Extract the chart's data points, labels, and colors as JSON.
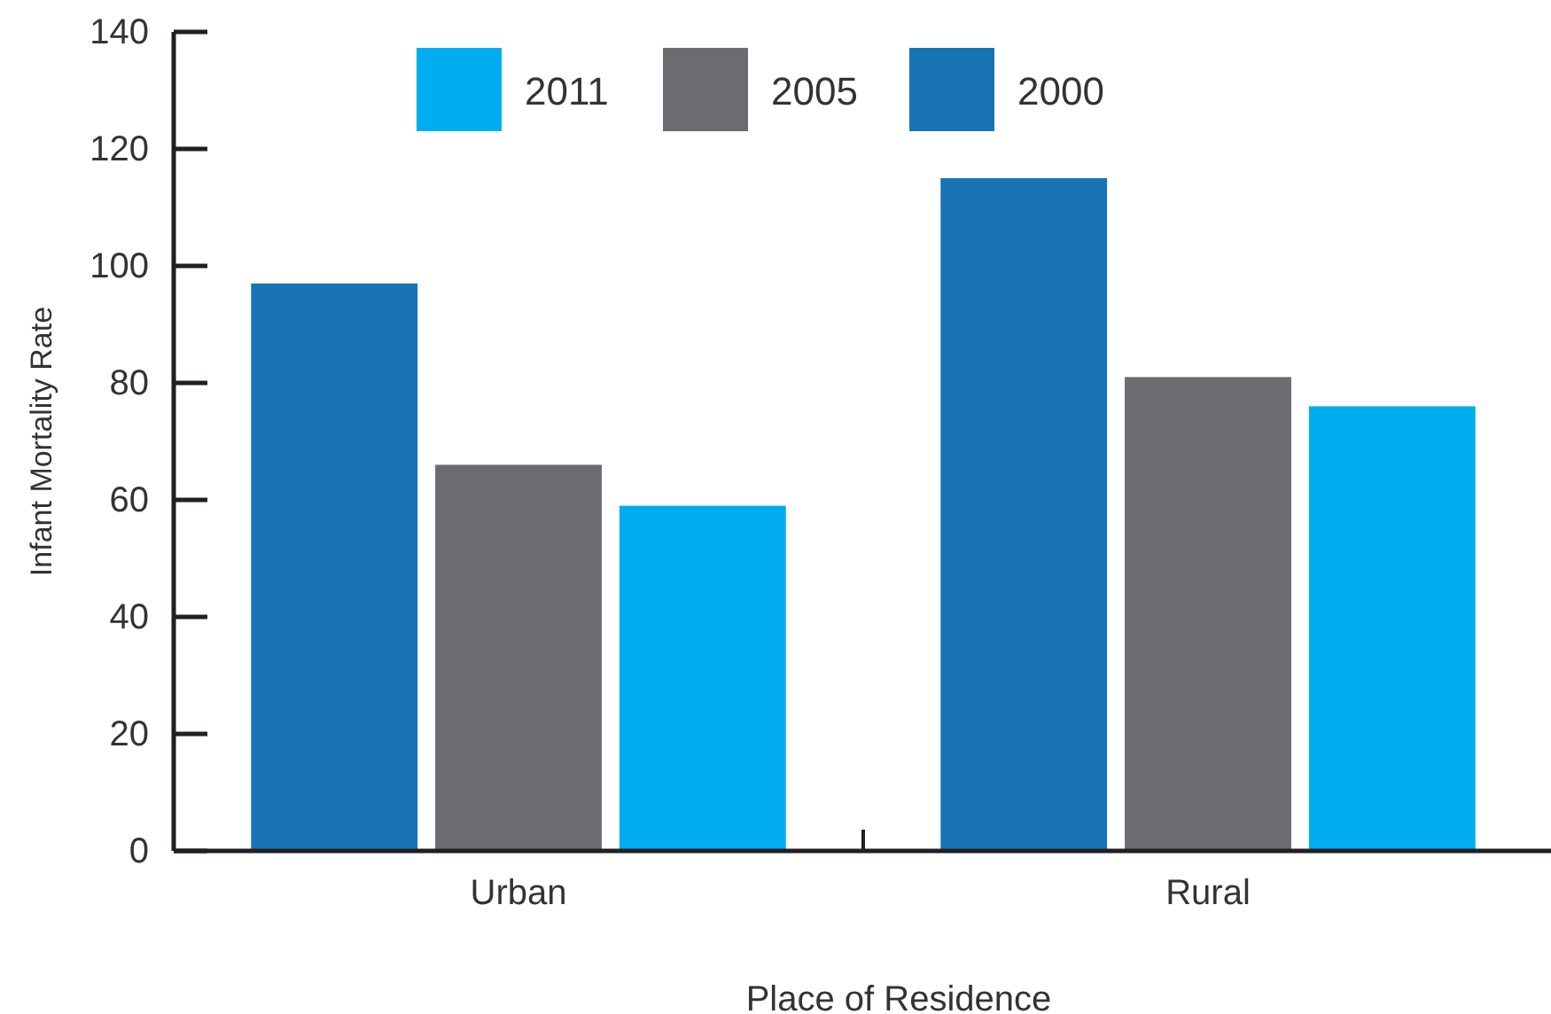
{
  "chart_data": {
    "type": "bar",
    "xlabel": "Place of Residence",
    "ylabel": "Infant Mortality Rate",
    "categories": [
      "Urban",
      "Rural"
    ],
    "series": [
      {
        "name": "2000",
        "color": "#1874b4",
        "values": [
          97,
          115
        ]
      },
      {
        "name": "2005",
        "color": "#6b6c70",
        "values": [
          66,
          81
        ]
      },
      {
        "name": "2011",
        "color": "#00aeef",
        "values": [
          59,
          76
        ]
      }
    ],
    "ylim": [
      0,
      140
    ],
    "yticks": [
      0,
      20,
      40,
      60,
      80,
      100,
      120,
      140
    ],
    "grid": false,
    "legend": "top"
  }
}
